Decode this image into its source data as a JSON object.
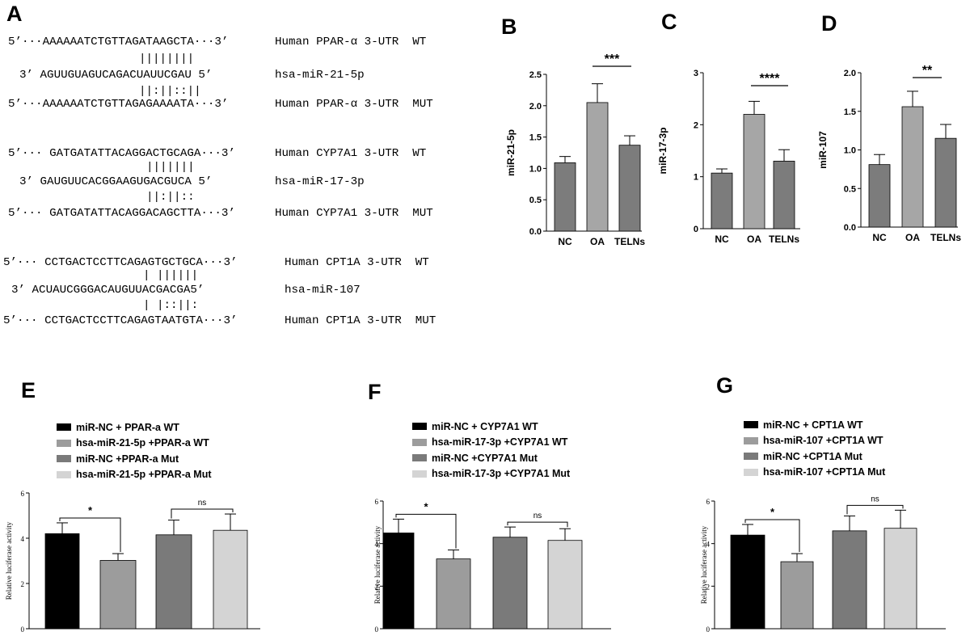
{
  "panels": {
    "A": "A",
    "B": "B",
    "C": "C",
    "D": "D",
    "E": "E",
    "F": "F",
    "G": "G"
  },
  "alignments": [
    {
      "wt_seq": "5’···AAAAAATCTGTTAGATAAGCTA···3’",
      "wt_label": "Human PPAR-α 3-UTR  WT",
      "pair1": "||||||||",
      "mirna_seq": "3’ AGUUGUAGUCAGACUAUUCGAU 5’",
      "mirna_label": "hsa-miR-21-5p",
      "pair2": "||:||::||",
      "mut_seq": "5’···AAAAAATCTGTTAGAGAAAATA···3’",
      "mut_label": "Human PPAR-α 3-UTR  MUT"
    },
    {
      "wt_seq": "5’··· GATGATATTACAGGACTGCAGA···3’",
      "wt_label": "Human CYP7A1 3-UTR  WT",
      "pair1": "|||||||",
      "mirna_seq": "3’ GAUGUUCACGGAAGUGACGUCA 5’",
      "mirna_label": "hsa-miR-17-3p",
      "pair2": "||:||::",
      "mut_seq": "5’··· GATGATATTACAGGACAGCTTA···3’",
      "mut_label": "Human CYP7A1 3-UTR  MUT"
    },
    {
      "wt_seq": "5’··· CCTGACTCCTTCAGAGTGCTGCA···3’",
      "wt_label": "Human CPT1A 3-UTR  WT",
      "pair1": "| ||||||",
      "mirna_seq": "3’ ACUAUCGGGACAUGUUACGACGA5’",
      "mirna_label": "hsa-miR-107",
      "pair2": "| |::||:",
      "mut_seq": "5’··· CCTGACTCCTTCAGAGTAATGTA···3’",
      "mut_label": "Human CPT1A 3-UTR  MUT"
    }
  ],
  "colors": {
    "nc": "#7c7c7c",
    "oa": "#a6a6a6",
    "teln": "#7c7c7c",
    "black": "#000000",
    "dark_gray": "#7a7a7a",
    "mid_gray": "#9c9c9c",
    "light_gray": "#d4d4d4"
  },
  "chart_data": [
    {
      "panel": "B",
      "type": "bar",
      "categories": [
        "NC",
        "OA",
        "TELNs"
      ],
      "values": [
        1.09,
        2.05,
        1.37
      ],
      "errors": [
        0.1,
        0.3,
        0.15
      ],
      "ylabel": "miR-21-5p",
      "ylim": [
        0,
        2.5
      ],
      "yticks": [
        "0.0",
        "0.5",
        "1.0",
        "1.5",
        "2.0",
        "2.5"
      ],
      "comparison": {
        "from": 1,
        "to": 2,
        "label": "***"
      }
    },
    {
      "panel": "C",
      "type": "bar",
      "categories": [
        "NC",
        "OA",
        "TELNs"
      ],
      "values": [
        1.07,
        2.2,
        1.3
      ],
      "errors": [
        0.08,
        0.25,
        0.22
      ],
      "ylabel": "miR-17-3p",
      "ylim": [
        0,
        3
      ],
      "yticks": [
        "0",
        "1",
        "2",
        "3"
      ],
      "comparison": {
        "from": 1,
        "to": 2,
        "label": "****"
      }
    },
    {
      "panel": "D",
      "type": "bar",
      "categories": [
        "NC",
        "OA",
        "TELNs"
      ],
      "values": [
        0.81,
        1.56,
        1.15
      ],
      "errors": [
        0.13,
        0.2,
        0.18
      ],
      "ylabel": "miR-107",
      "ylim": [
        0,
        2.0
      ],
      "yticks": [
        "0.0",
        "0.5",
        "1.0",
        "1.5",
        "2.0"
      ],
      "comparison": {
        "from": 1,
        "to": 2,
        "label": "**"
      }
    },
    {
      "panel": "E",
      "type": "bar",
      "series_names": [
        "miR-NC + PPAR-a WT",
        "hsa-miR-21-5p +PPAR-a WT",
        "miR-NC +PPAR-a Mut",
        "hsa-miR-21-5p +PPAR-a Mut"
      ],
      "values": [
        4.2,
        3.02,
        4.15,
        4.35
      ],
      "errors": [
        0.48,
        0.3,
        0.65,
        0.72
      ],
      "ylabel": "Relative luciferase activity",
      "ylim": [
        0,
        6
      ],
      "yticks": [
        "0",
        "2",
        "4",
        "6"
      ],
      "comparisons": [
        {
          "from": 0,
          "to": 1,
          "label": "*"
        },
        {
          "from": 2,
          "to": 3,
          "label": "ns"
        }
      ]
    },
    {
      "panel": "F",
      "type": "bar",
      "series_names": [
        "miR-NC + CYP7A1 WT",
        "hsa-miR-17-3p +CYP7A1 WT",
        "miR-NC +CYP7A1 Mut",
        "hsa-miR-17-3p +CYP7A1 Mut"
      ],
      "values": [
        4.5,
        3.28,
        4.3,
        4.15
      ],
      "errors": [
        0.65,
        0.42,
        0.48,
        0.55
      ],
      "ylabel": "Relative luciferase activity",
      "ylim": [
        0,
        6
      ],
      "yticks": [
        "0",
        "2",
        "4",
        "6"
      ],
      "comparisons": [
        {
          "from": 0,
          "to": 1,
          "label": "*"
        },
        {
          "from": 2,
          "to": 3,
          "label": "ns"
        }
      ]
    },
    {
      "panel": "G",
      "type": "bar",
      "series_names": [
        "miR-NC + CPT1A WT",
        "hsa-miR-107 +CPT1A WT",
        "miR-NC +CPT1A Mut",
        "hsa-miR-107 +CPT1A Mut"
      ],
      "values": [
        4.4,
        3.15,
        4.6,
        4.72
      ],
      "errors": [
        0.5,
        0.38,
        0.7,
        0.85
      ],
      "ylabel": "Relative luciferase activity",
      "ylim": [
        0,
        6
      ],
      "yticks": [
        "0",
        "2",
        "4",
        "6"
      ],
      "comparisons": [
        {
          "from": 0,
          "to": 1,
          "label": "*"
        },
        {
          "from": 2,
          "to": 3,
          "label": "ns"
        }
      ]
    }
  ]
}
